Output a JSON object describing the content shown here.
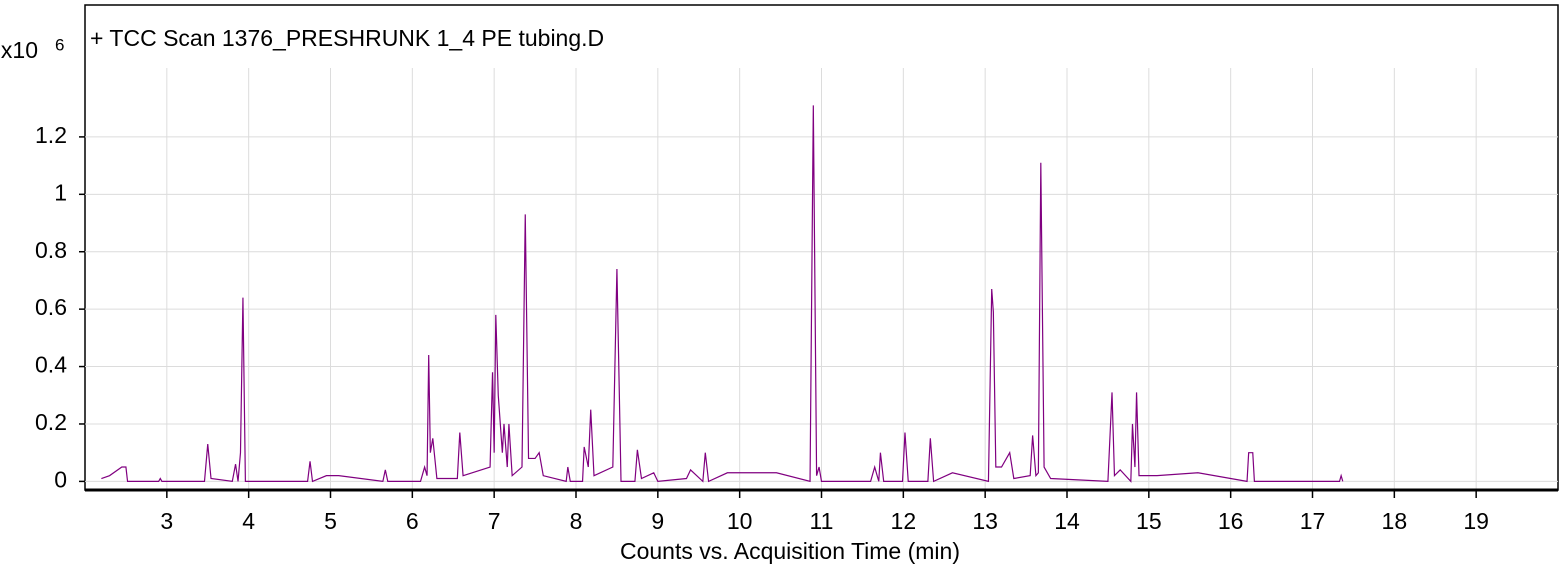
{
  "chart_data": {
    "type": "line",
    "title": "+ TCC Scan 1376_PRESHRUNK 1_4 PE tubing.D",
    "y_multiplier": "x10",
    "y_multiplier_exponent": "6",
    "xlabel": "Counts vs. Acquisition Time (min)",
    "xlim": [
      2,
      20
    ],
    "ylim": [
      -0.03,
      1.44
    ],
    "xticks": [
      3,
      4,
      5,
      6,
      7,
      8,
      9,
      10,
      11,
      12,
      13,
      14,
      15,
      16,
      17,
      18,
      19
    ],
    "yticks": [
      0,
      0.2,
      0.4,
      0.6,
      0.8,
      1,
      1.2
    ],
    "grid": true,
    "color": "#800080",
    "x": [
      2.2,
      2.3,
      2.45,
      2.5,
      2.52,
      2.9,
      2.92,
      2.94,
      3.46,
      3.5,
      3.54,
      3.8,
      3.84,
      3.87,
      3.9,
      3.93,
      3.96,
      4.72,
      4.75,
      4.78,
      4.95,
      5.1,
      5.64,
      5.67,
      5.7,
      6.1,
      6.15,
      6.18,
      6.2,
      6.22,
      6.25,
      6.3,
      6.55,
      6.58,
      6.62,
      6.95,
      6.98,
      7.0,
      7.02,
      7.05,
      7.1,
      7.12,
      7.16,
      7.18,
      7.22,
      7.34,
      7.38,
      7.42,
      7.5,
      7.55,
      7.6,
      7.88,
      7.9,
      7.93,
      8.08,
      8.1,
      8.15,
      8.18,
      8.22,
      8.45,
      8.5,
      8.55,
      8.72,
      8.75,
      8.8,
      8.95,
      9.0,
      9.35,
      9.4,
      9.55,
      9.58,
      9.62,
      9.85,
      10.45,
      10.86,
      10.9,
      10.94,
      10.97,
      11.0,
      11.6,
      11.65,
      11.7,
      11.72,
      11.76,
      11.99,
      12.02,
      12.06,
      12.3,
      12.33,
      12.37,
      12.6,
      13.04,
      13.08,
      13.1,
      13.13,
      13.2,
      13.3,
      13.35,
      13.55,
      13.58,
      13.62,
      13.65,
      13.68,
      13.72,
      13.8,
      14.5,
      14.55,
      14.58,
      14.65,
      14.78,
      14.8,
      14.83,
      14.85,
      14.88,
      15.1,
      15.6,
      16.2,
      16.22,
      16.27,
      16.29,
      17.33,
      17.35,
      17.37
    ],
    "y": [
      0.01,
      0.02,
      0.05,
      0.05,
      0,
      0,
      0.01,
      0,
      0,
      0.13,
      0.01,
      0,
      0.06,
      0,
      0.1,
      0.64,
      0,
      0,
      0.07,
      0,
      0.02,
      0.02,
      0,
      0.04,
      0,
      0,
      0.05,
      0.02,
      0.44,
      0.1,
      0.15,
      0.01,
      0.01,
      0.17,
      0.02,
      0.05,
      0.38,
      0.1,
      0.58,
      0.3,
      0.1,
      0.2,
      0.05,
      0.2,
      0.02,
      0.05,
      0.93,
      0.08,
      0.08,
      0.1,
      0.02,
      0,
      0.05,
      0,
      0,
      0.12,
      0.05,
      0.25,
      0.02,
      0.05,
      0.74,
      0,
      0,
      0.11,
      0.01,
      0.03,
      0,
      0.01,
      0.04,
      0,
      0.1,
      0,
      0.03,
      0.03,
      0,
      1.31,
      0.02,
      0.05,
      0,
      0,
      0.05,
      0,
      0.1,
      0,
      0,
      0.17,
      0,
      0,
      0.15,
      0,
      0.03,
      0,
      0.67,
      0.59,
      0.05,
      0.05,
      0.1,
      0.01,
      0.02,
      0.16,
      0.02,
      0.03,
      1.11,
      0.05,
      0.01,
      0,
      0.31,
      0.02,
      0.04,
      0,
      0.2,
      0.05,
      0.31,
      0.02,
      0.02,
      0.03,
      0,
      0.1,
      0.1,
      0,
      0,
      0.02,
      0
    ]
  }
}
